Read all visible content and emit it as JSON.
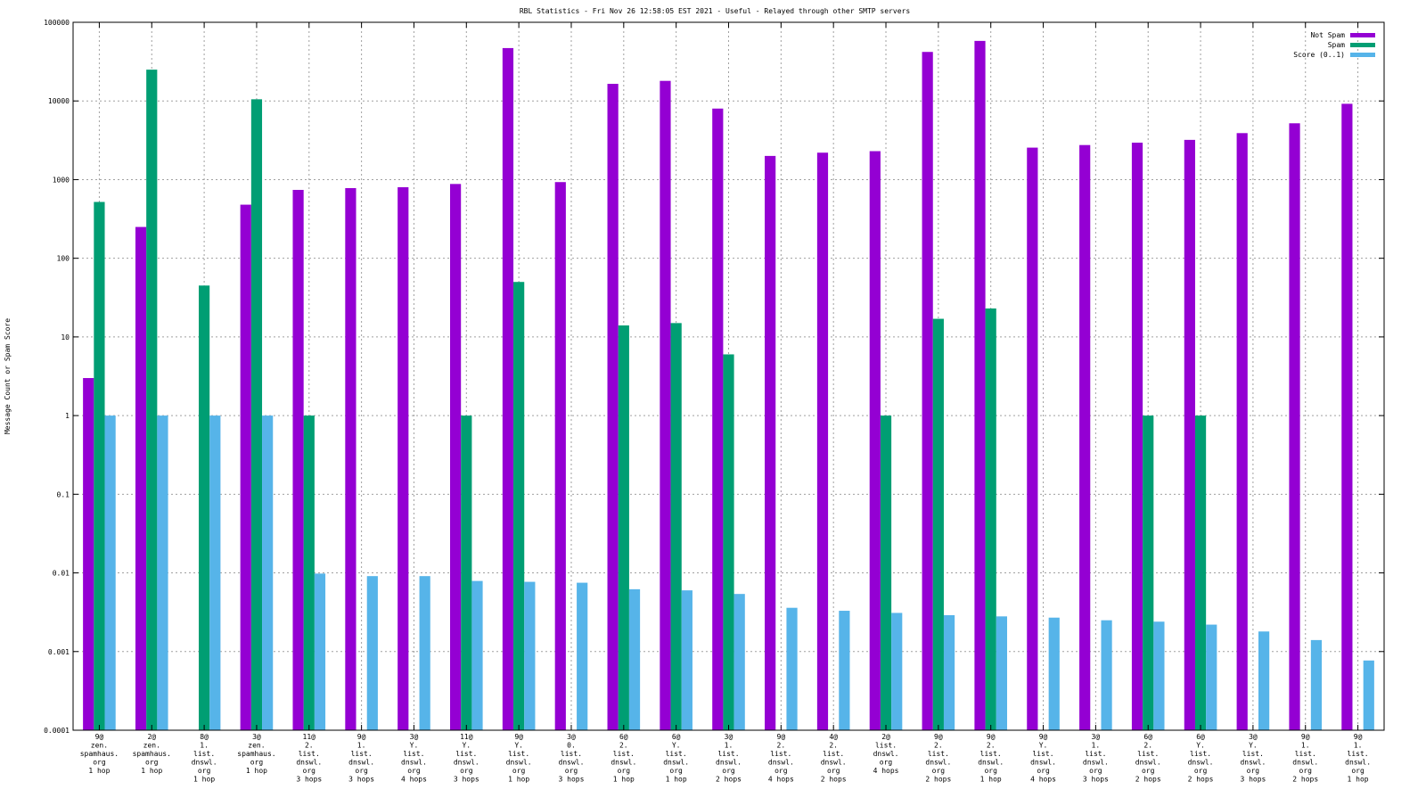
{
  "chart_data": {
    "type": "bar",
    "title": "RBL Statistics - Fri Nov 26 12:58:05 EST 2021 - Useful - Relayed through other SMTP servers",
    "xlabel": "",
    "ylabel": "Message Count or Spam Score",
    "yscale": "log",
    "ylim": [
      0.0001,
      100000
    ],
    "yticks": [
      "0.0001",
      "0.001",
      "0.01",
      "0.1",
      "1",
      "10",
      "100",
      "1000",
      "10000",
      "100000"
    ],
    "grid": true,
    "legend_position": "top-right",
    "categories": [
      [
        "9@",
        "zen.",
        "spamhaus.",
        "org",
        "1 hop"
      ],
      [
        "2@",
        "zen.",
        "spamhaus.",
        "org",
        "1 hop"
      ],
      [
        "8@",
        "1.",
        "list.",
        "dnswl.",
        "org",
        "1 hop"
      ],
      [
        "3@",
        "zen.",
        "spamhaus.",
        "org",
        "1 hop"
      ],
      [
        "11@",
        "2.",
        "list.",
        "dnswl.",
        "org",
        "3 hops"
      ],
      [
        "9@",
        "1.",
        "list.",
        "dnswl.",
        "org",
        "3 hops"
      ],
      [
        "3@",
        "Y.",
        "list.",
        "dnswl.",
        "org",
        "4 hops"
      ],
      [
        "11@",
        "Y.",
        "list.",
        "dnswl.",
        "org",
        "3 hops"
      ],
      [
        "9@",
        "Y.",
        "list.",
        "dnswl.",
        "org",
        "1 hop"
      ],
      [
        "3@",
        "0.",
        "list.",
        "dnswl.",
        "org",
        "3 hops"
      ],
      [
        "6@",
        "2.",
        "list.",
        "dnswl.",
        "org",
        "1 hop"
      ],
      [
        "6@",
        "Y.",
        "list.",
        "dnswl.",
        "org",
        "1 hop"
      ],
      [
        "3@",
        "1.",
        "list.",
        "dnswl.",
        "org",
        "2 hops"
      ],
      [
        "9@",
        "2.",
        "list.",
        "dnswl.",
        "org",
        "4 hops"
      ],
      [
        "4@",
        "2.",
        "list.",
        "dnswl.",
        "org",
        "2 hops"
      ],
      [
        "2@",
        "list.",
        "dnswl.",
        "org",
        "4 hops"
      ],
      [
        "9@",
        "2.",
        "list.",
        "dnswl.",
        "org",
        "2 hops"
      ],
      [
        "9@",
        "2.",
        "list.",
        "dnswl.",
        "org",
        "1 hop"
      ],
      [
        "9@",
        "Y.",
        "list.",
        "dnswl.",
        "org",
        "4 hops"
      ],
      [
        "3@",
        "1.",
        "list.",
        "dnswl.",
        "org",
        "3 hops"
      ],
      [
        "6@",
        "2.",
        "list.",
        "dnswl.",
        "org",
        "2 hops"
      ],
      [
        "6@",
        "Y.",
        "list.",
        "dnswl.",
        "org",
        "2 hops"
      ],
      [
        "3@",
        "Y.",
        "list.",
        "dnswl.",
        "org",
        "3 hops"
      ],
      [
        "9@",
        "1.",
        "list.",
        "dnswl.",
        "org",
        "2 hops"
      ],
      [
        "9@",
        "1.",
        "list.",
        "dnswl.",
        "org",
        "1 hop"
      ]
    ],
    "series": [
      {
        "name": "Not Spam",
        "color": "#9400d3",
        "values": [
          3,
          250,
          0,
          480,
          740,
          780,
          800,
          880,
          47000,
          930,
          16500,
          18000,
          8000,
          2000,
          2200,
          2300,
          42000,
          58000,
          2550,
          2750,
          2950,
          3200,
          3900,
          5200,
          9200
        ]
      },
      {
        "name": "Spam",
        "color": "#009e73",
        "values": [
          520,
          25000,
          45,
          10500,
          1,
          0,
          0,
          1,
          50,
          0,
          14,
          15,
          6,
          0,
          0,
          1,
          17,
          23,
          0,
          0,
          1,
          1,
          0,
          0,
          0
        ]
      },
      {
        "name": "Score (0..1)",
        "color": "#56b4e9",
        "values": [
          1,
          1,
          1,
          1,
          0.0098,
          0.0091,
          0.0091,
          0.0079,
          0.0077,
          0.0075,
          0.0062,
          0.006,
          0.0054,
          0.0036,
          0.0033,
          0.0031,
          0.0029,
          0.0028,
          0.0027,
          0.0025,
          0.0024,
          0.0022,
          0.0018,
          0.0014,
          0.00077
        ]
      }
    ]
  }
}
